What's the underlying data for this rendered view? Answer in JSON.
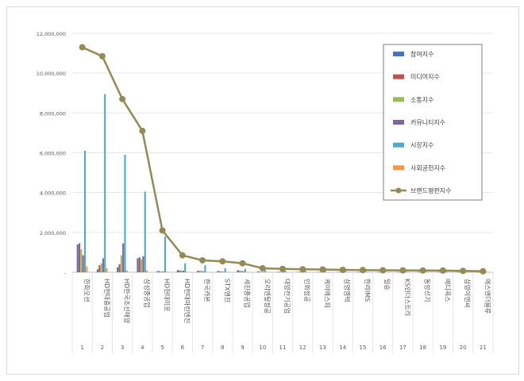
{
  "chart_data": {
    "type": "bar",
    "categories": [
      "한화오션",
      "HD현대중공업",
      "HD한국조선해양",
      "삼성중공업",
      "HD현대미포",
      "HD현대마린엔진",
      "한국카본",
      "STX엔진",
      "세진중공업",
      "오리엔탈정공",
      "대양전기공업",
      "인화정공",
      "케이에스피",
      "삼영엠텍",
      "한라IMS",
      "일승",
      "KS인더스트리",
      "동방선기",
      "메디콕스",
      "삼영이엔씨",
      "에스앤더블류"
    ],
    "ranks": [
      "1",
      "2",
      "3",
      "4",
      "5",
      "6",
      "7",
      "8",
      "9",
      "10",
      "11",
      "12",
      "13",
      "14",
      "15",
      "16",
      "17",
      "18",
      "19",
      "20",
      "21"
    ],
    "series": [
      {
        "name": "참여지수",
        "color": "#4472c4",
        "values": [
          1400000,
          150000,
          250000,
          700000,
          60000,
          110000,
          70000,
          60000,
          110000,
          40000,
          20000,
          20000,
          20000,
          15000,
          15000,
          12000,
          12000,
          12000,
          10000,
          10000,
          8000
        ]
      },
      {
        "name": "미디어지수",
        "color": "#c0504d",
        "values": [
          1450000,
          350000,
          400000,
          750000,
          50000,
          80000,
          60000,
          50000,
          60000,
          30000,
          15000,
          20000,
          20000,
          15000,
          12000,
          10000,
          10000,
          10000,
          8000,
          8000,
          6000
        ]
      },
      {
        "name": "소통지수",
        "color": "#9bbb59",
        "values": [
          1150000,
          450000,
          850000,
          650000,
          40000,
          100000,
          90000,
          40000,
          90000,
          30000,
          15000,
          15000,
          15000,
          12000,
          10000,
          10000,
          10000,
          8000,
          8000,
          6000,
          5000
        ]
      },
      {
        "name": "커뮤니티지수",
        "color": "#8064a2",
        "values": [
          850000,
          700000,
          1450000,
          800000,
          40000,
          80000,
          40000,
          30000,
          50000,
          20000,
          10000,
          10000,
          10000,
          8000,
          8000,
          8000,
          6000,
          6000,
          5000,
          5000,
          4000
        ]
      },
      {
        "name": "시장지수",
        "color": "#4bacc6",
        "values": [
          6100000,
          8950000,
          5900000,
          4050000,
          1800000,
          450000,
          350000,
          200000,
          180000,
          100000,
          80000,
          70000,
          70000,
          60000,
          60000,
          50000,
          50000,
          40000,
          40000,
          30000,
          30000
        ]
      },
      {
        "name": "사회공헌지수",
        "color": "#f79646",
        "values": [
          300000,
          200000,
          100000,
          100000,
          30000,
          20000,
          10000,
          10000,
          10000,
          5000,
          5000,
          5000,
          5000,
          5000,
          5000,
          5000,
          5000,
          5000,
          5000,
          5000,
          5000
        ]
      }
    ],
    "line_series": {
      "name": "브랜드평판지수",
      "color": "#948a54",
      "values": [
        11300000,
        10850000,
        8700000,
        7100000,
        2100000,
        850000,
        600000,
        550000,
        450000,
        200000,
        170000,
        150000,
        140000,
        120000,
        110000,
        100000,
        95000,
        90000,
        85000,
        70000,
        50000
      ]
    },
    "yticks": [
      "12,000,000",
      "10,000,000",
      "8,000,000",
      "6,000,000",
      "4,000,000",
      "2,000,000",
      "-"
    ],
    "ylim": [
      0,
      12000000
    ],
    "grid": true,
    "legend_position": "top-right"
  }
}
